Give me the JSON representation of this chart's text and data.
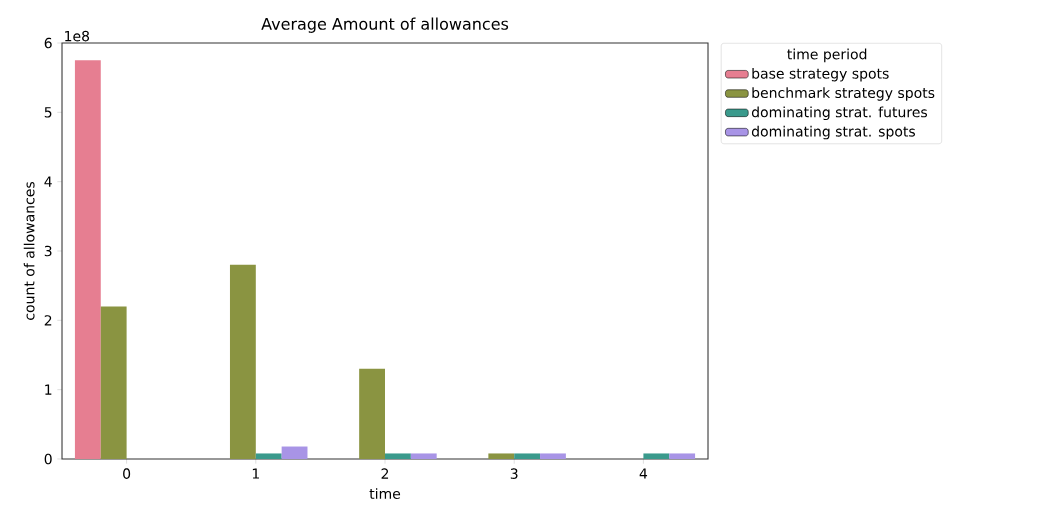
{
  "chart_data": {
    "type": "bar",
    "title": "Average Amount of allowances",
    "xlabel": "time",
    "ylabel": "count of allowances",
    "legend_title": "time period",
    "annotations": [
      "1e8"
    ],
    "categories": [
      "0",
      "1",
      "2",
      "3",
      "4"
    ],
    "series": [
      {
        "name": "base strategy spots",
        "color": "#e67e91",
        "values": [
          5.75,
          null,
          null,
          null,
          null
        ]
      },
      {
        "name": "benchmark strategy spots",
        "color": "#8a9441",
        "values": [
          2.2,
          2.8,
          1.3,
          0.08,
          null
        ]
      },
      {
        "name": "dominating strat. futures",
        "color": "#3a9a8c",
        "values": [
          null,
          0.08,
          0.08,
          0.08,
          0.08
        ]
      },
      {
        "name": "dominating strat. spots",
        "color": "#a894e6",
        "values": [
          null,
          0.18,
          0.08,
          0.08,
          0.08
        ]
      }
    ],
    "ylim": [
      0,
      6
    ],
    "yticks": [
      0,
      1,
      2,
      3,
      4,
      5,
      6
    ],
    "legend": "top right"
  }
}
